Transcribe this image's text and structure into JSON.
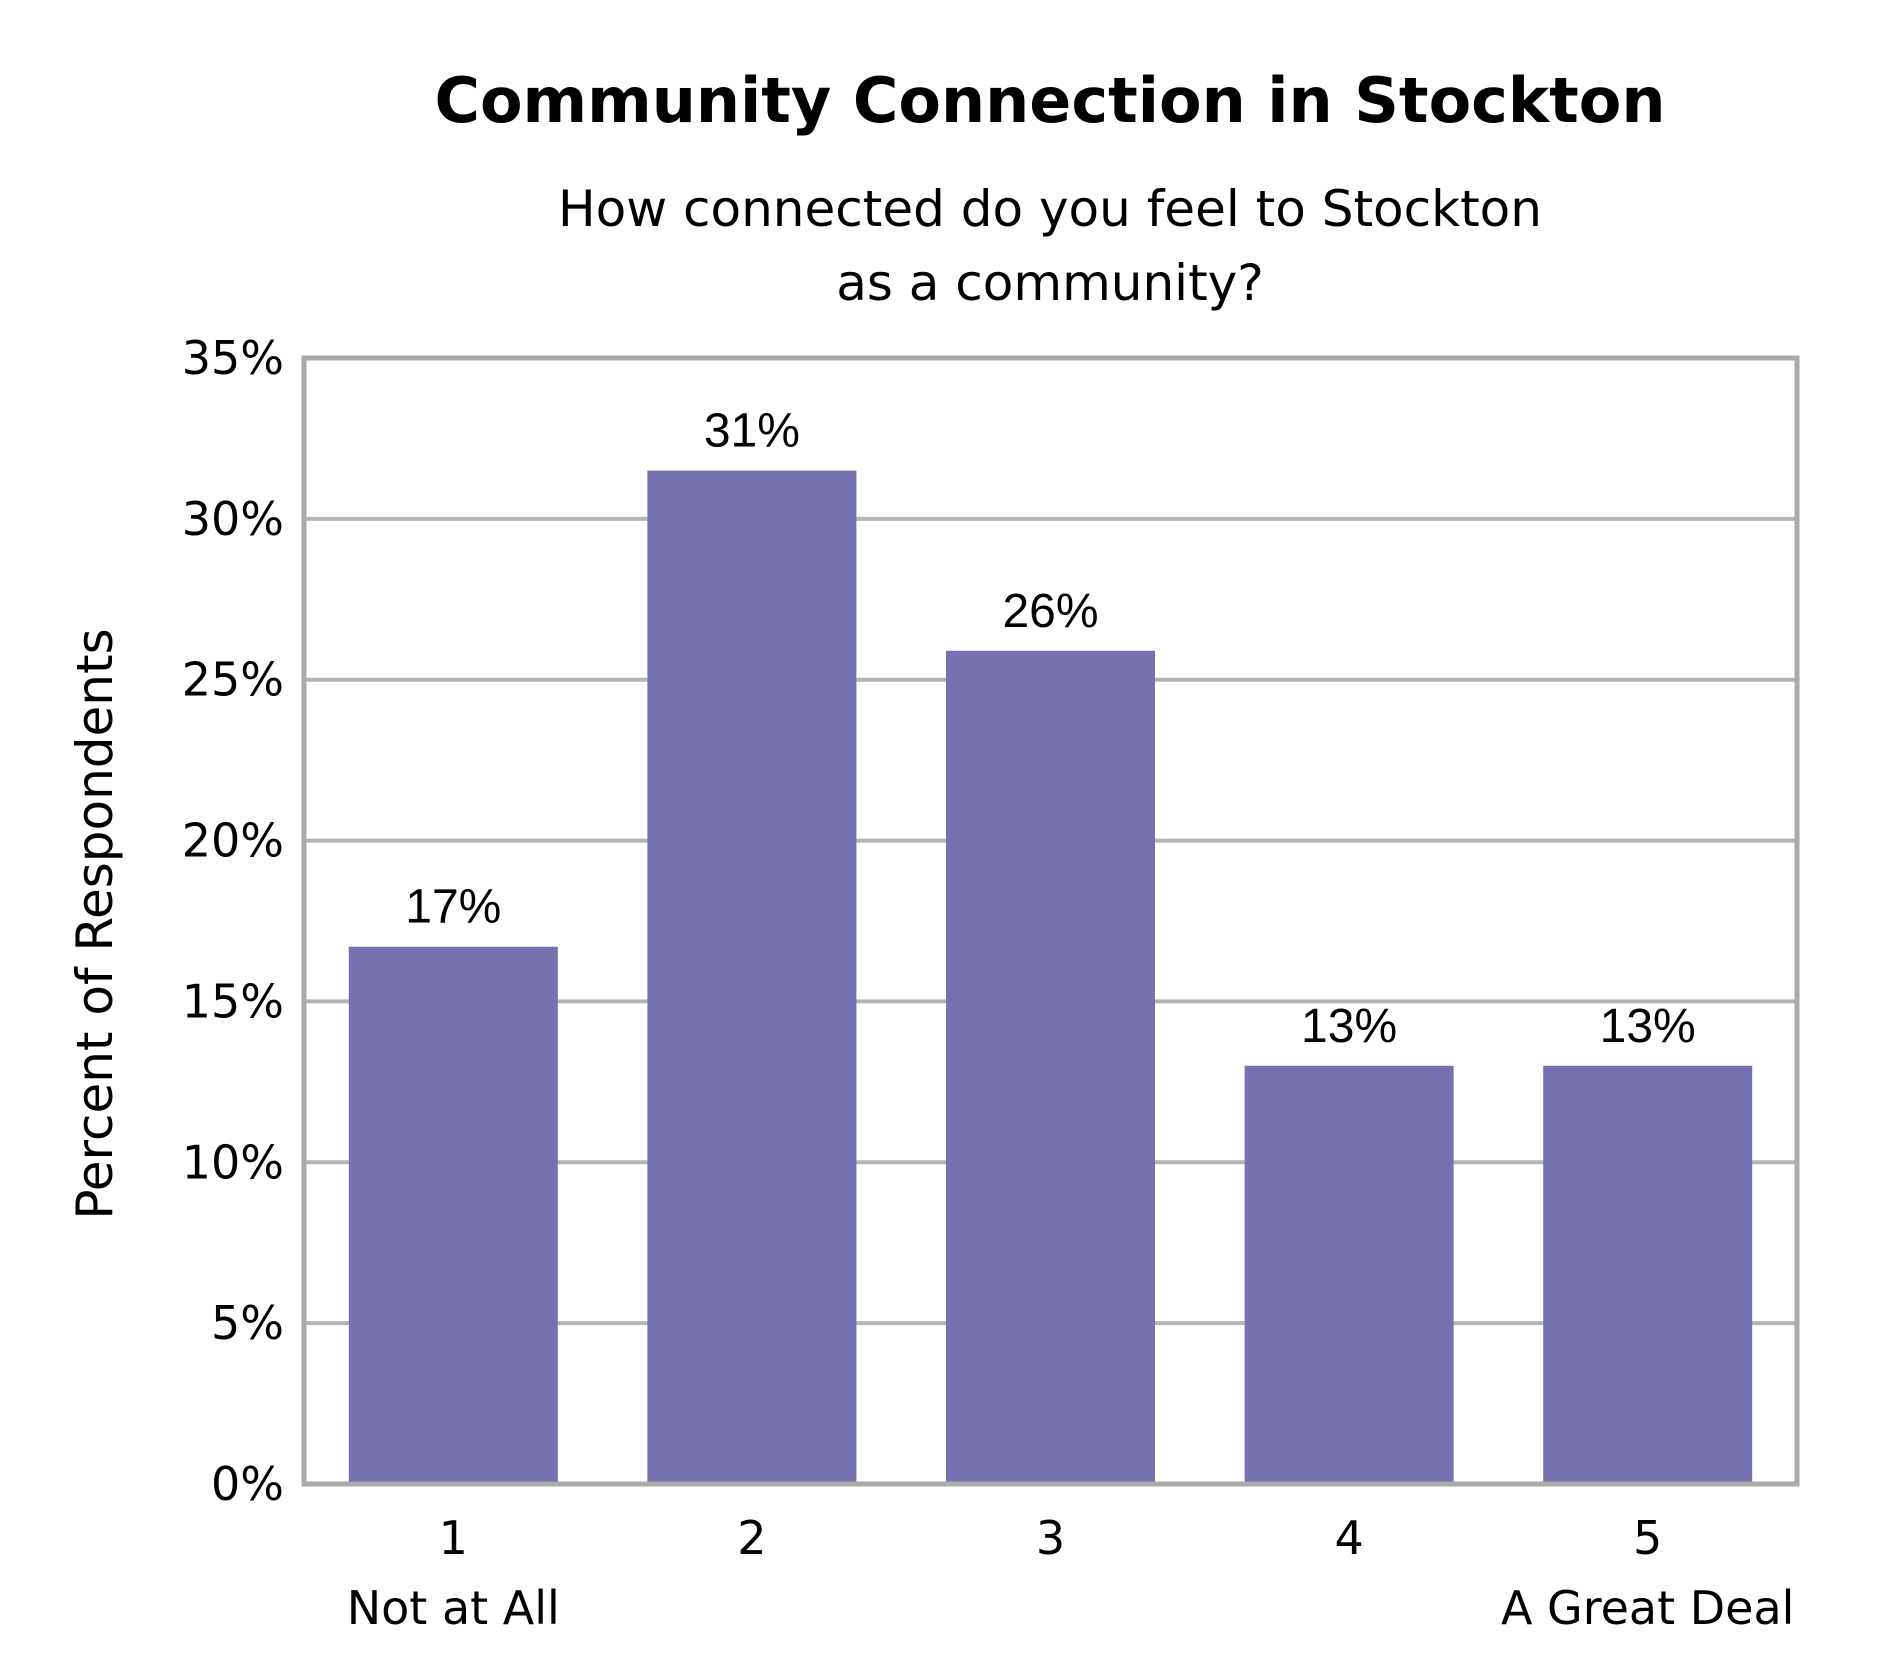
{
  "chart_data": {
    "type": "bar",
    "title": "Community Connection in Stockton",
    "subtitle_lines": [
      "How connected do you feel to Stockton",
      "as a community?"
    ],
    "ylabel": "Percent of Respondents",
    "xlabel": "",
    "categories": [
      "1",
      "2",
      "3",
      "4",
      "5"
    ],
    "category_sublabels": [
      "Not at All",
      "",
      "",
      "",
      "A Great Deal"
    ],
    "values": [
      16.7,
      31.5,
      25.9,
      13.0,
      13.0
    ],
    "data_labels": [
      "17%",
      "31%",
      "26%",
      "13%",
      "13%"
    ],
    "ylim": [
      0,
      35
    ],
    "yticks": [
      0,
      5,
      10,
      15,
      20,
      25,
      30,
      35
    ],
    "ytick_labels": [
      "0%",
      "5%",
      "10%",
      "15%",
      "20%",
      "25%",
      "30%",
      "35%"
    ],
    "grid": true,
    "bar_color": "#7672b2",
    "grid_color": "#b4b4b4",
    "axis_color": "#aaaaaa"
  }
}
